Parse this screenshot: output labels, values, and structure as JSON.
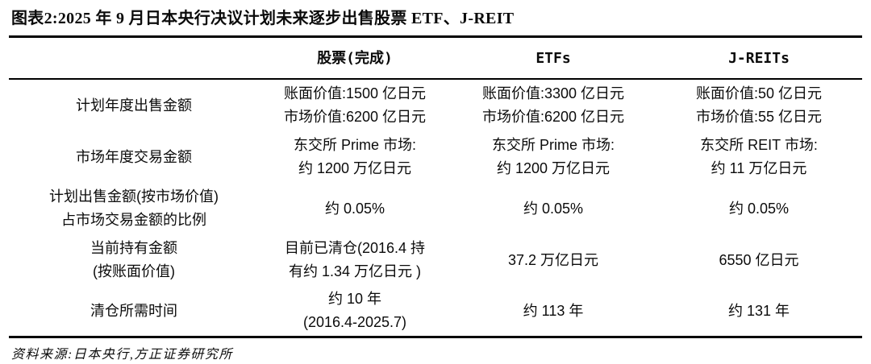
{
  "figure": {
    "title": "图表2:2025 年 9 月日本央行决议计划未来逐步出售股票 ETF、J-REIT",
    "source": "资料来源:日本央行,方正证券研究所"
  },
  "table": {
    "headers": {
      "rowlabel": "",
      "stock": "股票(完成)",
      "etf": "ETFs",
      "jreit": "J-REITs"
    },
    "rows": [
      {
        "label": [
          "计划年度出售金额"
        ],
        "stock": [
          "账面价值:1500 亿日元",
          "市场价值:6200 亿日元"
        ],
        "etf": [
          "账面价值:3300 亿日元",
          "市场价值:6200 亿日元"
        ],
        "jreit": [
          "账面价值:50 亿日元",
          "市场价值:55 亿日元"
        ]
      },
      {
        "label": [
          "市场年度交易金额"
        ],
        "stock": [
          "东交所 Prime 市场:",
          "约 1200 万亿日元"
        ],
        "etf": [
          "东交所 Prime 市场:",
          "约 1200 万亿日元"
        ],
        "jreit": [
          "东交所 REIT 市场:",
          "约 11 万亿日元"
        ]
      },
      {
        "label": [
          "计划出售金额(按市场价值)",
          "占市场交易金额的比例"
        ],
        "stock": [
          "约 0.05%"
        ],
        "etf": [
          "约 0.05%"
        ],
        "jreit": [
          "约 0.05%"
        ]
      },
      {
        "label": [
          "当前持有金额",
          "(按账面价值)"
        ],
        "stock": [
          "目前已清仓(2016.4 持",
          "有约 1.34 万亿日元 )"
        ],
        "etf": [
          "37.2 万亿日元"
        ],
        "jreit": [
          "6550 亿日元"
        ]
      },
      {
        "label": [
          "清仓所需时间"
        ],
        "stock": [
          "约 10 年",
          "(2016.4-2025.7)"
        ],
        "etf": [
          "约 113 年"
        ],
        "jreit": [
          "约 131 年"
        ]
      }
    ]
  }
}
